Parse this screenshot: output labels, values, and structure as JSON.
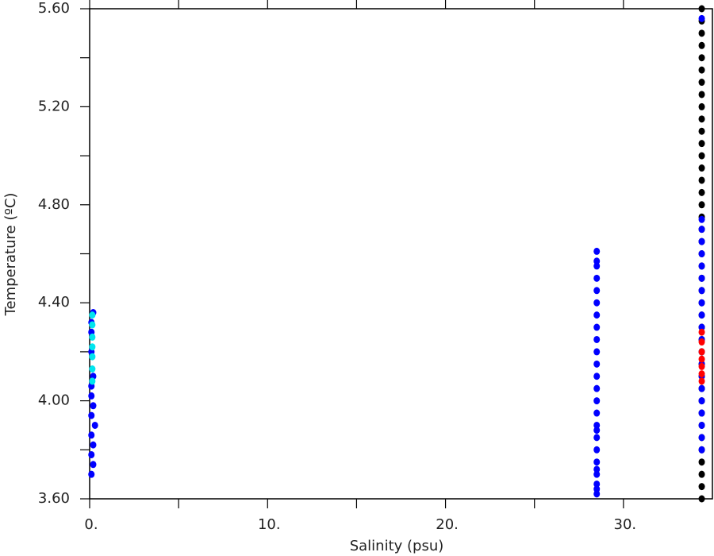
{
  "chart_data": {
    "type": "scatter",
    "x_label": "Salinity (psu)",
    "y_label": "Temperature (ºC)",
    "xlim": [
      0,
      35
    ],
    "ylim": [
      3.6,
      5.6
    ],
    "xticks": [
      {
        "value": 0,
        "label": "0."
      },
      {
        "value": 10,
        "label": "10."
      },
      {
        "value": 20,
        "label": "20."
      },
      {
        "value": 30,
        "label": "30."
      }
    ],
    "xticks_minor": [
      5,
      15,
      25
    ],
    "yticks": [
      {
        "value": 3.6,
        "label": "3.60"
      },
      {
        "value": 4.0,
        "label": "4.00"
      },
      {
        "value": 4.4,
        "label": "4.40"
      },
      {
        "value": 4.8,
        "label": "4.80"
      },
      {
        "value": 5.2,
        "label": "5.20"
      },
      {
        "value": 5.6,
        "label": "5.60"
      }
    ],
    "yticks_minor": [
      3.8,
      4.2,
      4.6,
      5.0,
      5.4
    ],
    "series": [
      {
        "color": "#000000",
        "x": [
          34.4,
          34.4,
          34.4,
          34.4,
          34.4,
          34.4,
          34.4,
          34.4,
          34.4,
          34.4,
          34.4,
          34.4,
          34.4,
          34.4,
          34.4,
          34.4,
          34.4,
          34.4,
          34.4,
          34.4,
          34.4,
          34.4,
          34.4,
          34.4,
          34.4,
          34.4,
          34.4,
          34.4,
          34.4,
          34.4,
          34.4,
          34.4,
          34.4,
          34.4,
          34.4,
          34.4,
          34.4,
          34.4,
          34.4,
          34.4,
          34.4
        ],
        "y": [
          3.6,
          3.65,
          3.7,
          3.75,
          3.8,
          3.85,
          3.9,
          3.95,
          4.0,
          4.05,
          4.1,
          4.15,
          4.2,
          4.25,
          4.3,
          4.35,
          4.4,
          4.45,
          4.5,
          4.55,
          4.6,
          4.65,
          4.7,
          4.75,
          4.8,
          4.85,
          4.9,
          4.95,
          5.0,
          5.05,
          5.1,
          5.15,
          5.2,
          5.25,
          5.3,
          5.35,
          5.4,
          5.45,
          5.5,
          5.55,
          5.6
        ]
      },
      {
        "color": "#0000ff",
        "x": [
          0.1,
          0.2,
          0.1,
          0.2,
          0.1,
          0.3,
          0.1,
          0.2,
          0.1,
          0.1,
          0.1,
          0.1,
          0.1,
          0.2,
          0.2,
          28.5,
          28.5,
          28.5,
          28.5,
          28.5,
          28.5,
          28.5,
          28.5,
          28.5,
          28.5,
          28.5,
          28.5,
          28.5,
          28.5,
          28.5,
          28.5,
          28.5,
          28.5,
          28.5,
          28.5,
          28.5,
          28.5,
          28.5,
          28.5,
          28.5,
          34.4,
          34.4,
          34.4,
          34.4,
          34.4,
          34.4,
          34.4,
          34.4,
          34.4,
          34.4,
          34.4,
          34.4,
          34.4,
          34.4,
          34.4,
          34.4,
          34.4,
          34.4,
          34.4,
          34.4,
          34.4
        ],
        "y": [
          3.7,
          3.74,
          3.78,
          3.82,
          3.86,
          3.9,
          3.94,
          3.98,
          4.02,
          4.06,
          4.2,
          4.28,
          4.32,
          4.36,
          4.1,
          3.62,
          3.66,
          3.7,
          3.75,
          3.8,
          3.85,
          3.9,
          3.95,
          4.0,
          4.05,
          4.1,
          4.15,
          4.2,
          4.25,
          4.3,
          4.35,
          4.4,
          4.45,
          4.5,
          4.55,
          4.57,
          4.61,
          3.64,
          3.72,
          3.88,
          3.8,
          3.85,
          3.9,
          3.95,
          4.0,
          4.05,
          4.1,
          4.15,
          4.2,
          4.25,
          4.3,
          4.35,
          4.4,
          4.45,
          4.5,
          4.55,
          4.6,
          4.65,
          4.7,
          4.74,
          5.56
        ]
      },
      {
        "color": "#00e5ee",
        "x": [
          0.15,
          0.15,
          0.15,
          0.15,
          0.15,
          0.15,
          0.15
        ],
        "y": [
          4.08,
          4.13,
          4.18,
          4.22,
          4.26,
          4.31,
          4.35
        ]
      },
      {
        "color": "#ff0000",
        "x": [
          34.4,
          34.4,
          34.4,
          34.4,
          34.4,
          34.4,
          34.4
        ],
        "y": [
          4.08,
          4.11,
          4.14,
          4.17,
          4.2,
          4.24,
          4.28
        ]
      }
    ]
  }
}
